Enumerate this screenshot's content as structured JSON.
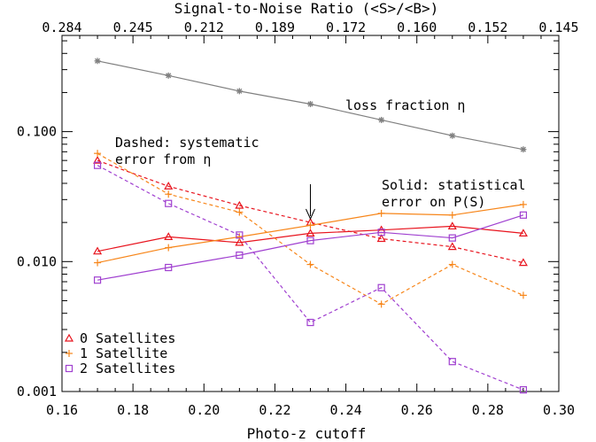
{
  "chart_data": {
    "type": "line",
    "title": "",
    "xlabel": "Photo-z cutoff",
    "x2label": "Signal-to-Noise Ratio (<S>/<B>)",
    "ylabel": "",
    "xlim": [
      0.16,
      0.3
    ],
    "ylim": [
      0.001,
      0.55
    ],
    "yscale": "log",
    "x_ticks": [
      "0.16",
      "0.18",
      "0.20",
      "0.22",
      "0.24",
      "0.26",
      "0.28",
      "0.30"
    ],
    "x2_ticks": [
      "0.284",
      "0.245",
      "0.212",
      "0.189",
      "0.172",
      "0.160",
      "0.152",
      "0.145"
    ],
    "y_ticks": [
      "0.001",
      "0.010",
      "0.100"
    ],
    "x": [
      0.17,
      0.19,
      0.21,
      0.23,
      0.25,
      0.27,
      0.29
    ],
    "series": [
      {
        "name": "loss fraction η",
        "marker": "asterisk",
        "color": "#808080",
        "dash": false,
        "values": [
          0.35,
          0.27,
          0.205,
          0.163,
          0.123,
          0.093,
          0.073
        ]
      },
      {
        "name": "0 Satellites",
        "marker": "triangle",
        "color": "#e8141e",
        "dash": false,
        "values": [
          0.012,
          0.0155,
          0.014,
          0.0165,
          0.0175,
          0.0187,
          0.0165
        ]
      },
      {
        "name": "0 Satellites",
        "marker": "triangle",
        "color": "#e8141e",
        "dash": true,
        "values": [
          0.06,
          0.038,
          0.027,
          0.02,
          0.015,
          0.013,
          0.0098
        ]
      },
      {
        "name": "1 Satellite",
        "marker": "plus",
        "color": "#f7861a",
        "dash": false,
        "values": [
          0.0098,
          0.0128,
          0.0155,
          0.019,
          0.0235,
          0.0228,
          0.0275
        ]
      },
      {
        "name": "1 Satellite",
        "marker": "plus",
        "color": "#f7861a",
        "dash": true,
        "values": [
          0.068,
          0.033,
          0.024,
          0.0095,
          0.0047,
          0.0095,
          0.0055
        ]
      },
      {
        "name": "2 Satellites",
        "marker": "square",
        "color": "#a040d0",
        "dash": false,
        "values": [
          0.0072,
          0.009,
          0.0112,
          0.0145,
          0.0168,
          0.0152,
          0.0228
        ]
      },
      {
        "name": "2 Satellites",
        "marker": "square",
        "color": "#a040d0",
        "dash": true,
        "values": [
          0.055,
          0.028,
          0.016,
          0.0034,
          0.0063,
          0.0017,
          0.00103
        ]
      }
    ],
    "annotations": {
      "loss": "loss fraction η",
      "dashed_1": "Dashed: systematic",
      "dashed_2": "error from η",
      "solid_1": "Solid: statistical",
      "solid_2": "error on P(S)"
    },
    "arrow_x": 0.23,
    "legend": {
      "placement": "bottom-left",
      "entries": [
        {
          "label": "0 Satellites",
          "marker": "triangle",
          "color": "#e8141e"
        },
        {
          "label": "1 Satellite",
          "marker": "plus",
          "color": "#f7861a"
        },
        {
          "label": "2 Satellites",
          "marker": "square",
          "color": "#a040d0"
        }
      ]
    }
  }
}
